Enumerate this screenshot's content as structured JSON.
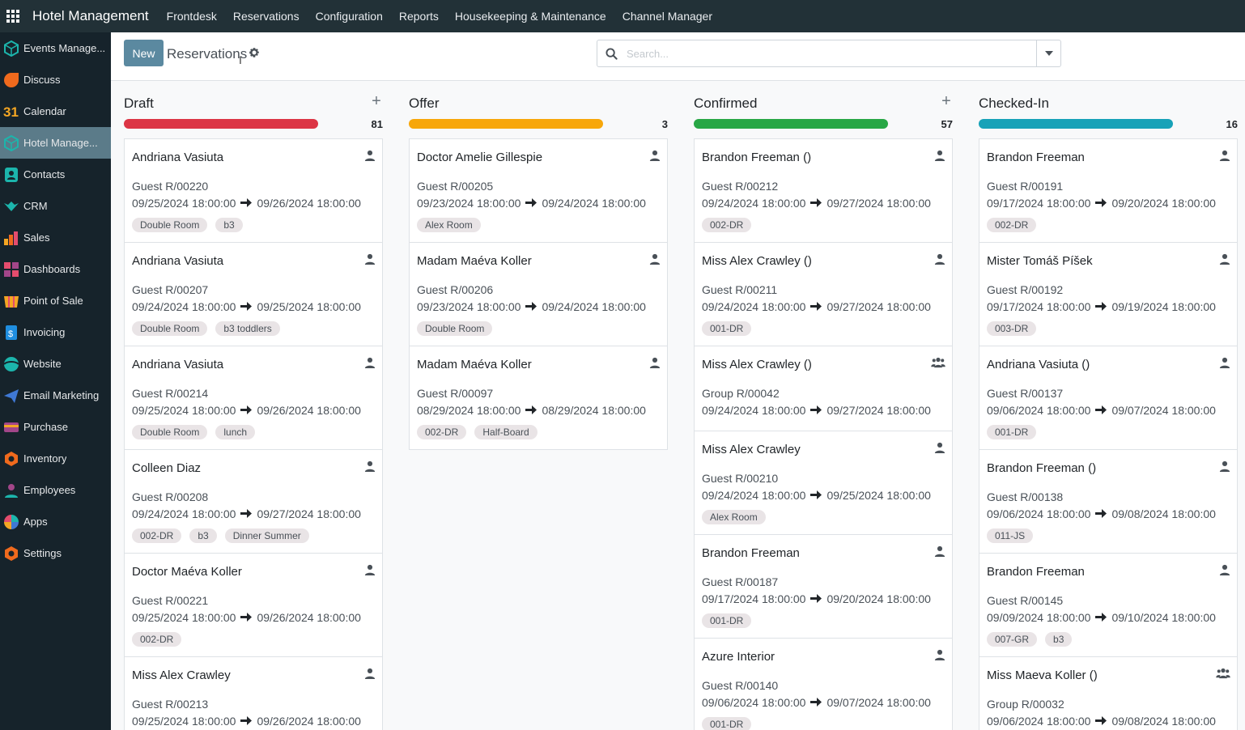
{
  "app": {
    "brand": "Hotel Management",
    "menu": [
      "Frontdesk",
      "Reservations",
      "Configuration",
      "Reports",
      "Housekeeping & Maintenance",
      "Channel Manager"
    ]
  },
  "sidebar": {
    "items": [
      {
        "label": "Events Manage...",
        "icon": "events-icon",
        "color": "#1cb5ac"
      },
      {
        "label": "Discuss",
        "icon": "discuss-icon",
        "color": "#f06a1d"
      },
      {
        "label": "Calendar",
        "icon": "calendar-icon",
        "color": "#f4a623"
      },
      {
        "label": "Hotel Manage...",
        "icon": "hotel-icon",
        "color": "#1cb5ac",
        "active": true
      },
      {
        "label": "Contacts",
        "icon": "contacts-icon",
        "color": "#1cb5ac"
      },
      {
        "label": "CRM",
        "icon": "crm-icon",
        "color": "#1cb5ac"
      },
      {
        "label": "Sales",
        "icon": "sales-icon",
        "color": "#f06a1d"
      },
      {
        "label": "Dashboards",
        "icon": "dashboards-icon",
        "color": "#e44c6d"
      },
      {
        "label": "Point of Sale",
        "icon": "pos-icon",
        "color": "#f4a623"
      },
      {
        "label": "Invoicing",
        "icon": "invoicing-icon",
        "color": "#1f8ee0"
      },
      {
        "label": "Website",
        "icon": "website-icon",
        "color": "#1cb5ac"
      },
      {
        "label": "Email Marketing",
        "icon": "email-marketing-icon",
        "color": "#3f78d4"
      },
      {
        "label": "Purchase",
        "icon": "purchase-icon",
        "color": "#a24689"
      },
      {
        "label": "Inventory",
        "icon": "inventory-icon",
        "color": "#f06a1d"
      },
      {
        "label": "Employees",
        "icon": "employees-icon",
        "color": "#a24689"
      },
      {
        "label": "Apps",
        "icon": "apps-icon",
        "color": "#e44c6d"
      },
      {
        "label": "Settings",
        "icon": "settings-icon",
        "color": "#f06a1d"
      }
    ]
  },
  "control": {
    "new_label": "New",
    "title": "Reservations",
    "search_placeholder": "Search..."
  },
  "columns": [
    {
      "title": "Draft",
      "count": "81",
      "color": "#dc3545",
      "addable": true,
      "cards": [
        {
          "name": "Andriana Vasiuta",
          "ref": "Guest R/00220",
          "from": "09/25/2024 18:00:00",
          "to": "09/26/2024 18:00:00",
          "tags": [
            "Double Room",
            "b3"
          ],
          "icon": "person"
        },
        {
          "name": "Andriana Vasiuta",
          "ref": "Guest R/00207",
          "from": "09/24/2024 18:00:00",
          "to": "09/25/2024 18:00:00",
          "tags": [
            "Double Room",
            "b3 toddlers"
          ],
          "icon": "person"
        },
        {
          "name": "Andriana Vasiuta",
          "ref": "Guest R/00214",
          "from": "09/25/2024 18:00:00",
          "to": "09/26/2024 18:00:00",
          "tags": [
            "Double Room",
            "lunch"
          ],
          "icon": "person"
        },
        {
          "name": "Colleen Diaz",
          "ref": "Guest R/00208",
          "from": "09/24/2024 18:00:00",
          "to": "09/27/2024 18:00:00",
          "tags": [
            "002-DR",
            "b3",
            "Dinner Summer"
          ],
          "icon": "person"
        },
        {
          "name": "Doctor Maéva Koller",
          "ref": "Guest R/00221",
          "from": "09/25/2024 18:00:00",
          "to": "09/26/2024 18:00:00",
          "tags": [
            "002-DR"
          ],
          "icon": "person"
        },
        {
          "name": "Miss Alex Crawley",
          "ref": "Guest R/00213",
          "from": "09/25/2024 18:00:00",
          "to": "09/26/2024 18:00:00",
          "tags": [],
          "icon": "person"
        }
      ]
    },
    {
      "title": "Offer",
      "count": "3",
      "color": "#f7a70a",
      "addable": false,
      "cards": [
        {
          "name": "Doctor Amelie Gillespie",
          "ref": "Guest R/00205",
          "from": "09/23/2024 18:00:00",
          "to": "09/24/2024 18:00:00",
          "tags": [
            "Alex Room"
          ],
          "icon": "person"
        },
        {
          "name": "Madam Maéva Koller",
          "ref": "Guest R/00206",
          "from": "09/23/2024 18:00:00",
          "to": "09/24/2024 18:00:00",
          "tags": [
            "Double Room"
          ],
          "icon": "person"
        },
        {
          "name": "Madam Maéva Koller",
          "ref": "Guest R/00097",
          "from": "08/29/2024 18:00:00",
          "to": "08/29/2024 18:00:00",
          "tags": [
            "002-DR",
            "Half-Board"
          ],
          "icon": "person"
        }
      ]
    },
    {
      "title": "Confirmed",
      "count": "57",
      "color": "#28a745",
      "addable": true,
      "cards": [
        {
          "name": "Brandon Freeman ()",
          "ref": "Guest R/00212",
          "from": "09/24/2024 18:00:00",
          "to": "09/27/2024 18:00:00",
          "tags": [
            "002-DR"
          ],
          "icon": "person"
        },
        {
          "name": "Miss Alex Crawley ()",
          "ref": "Guest R/00211",
          "from": "09/24/2024 18:00:00",
          "to": "09/27/2024 18:00:00",
          "tags": [
            "001-DR"
          ],
          "icon": "person"
        },
        {
          "name": "Miss Alex Crawley ()",
          "ref": "Group R/00042",
          "from": "09/24/2024 18:00:00",
          "to": "09/27/2024 18:00:00",
          "tags": [],
          "icon": "group"
        },
        {
          "name": "Miss Alex Crawley",
          "ref": "Guest R/00210",
          "from": "09/24/2024 18:00:00",
          "to": "09/25/2024 18:00:00",
          "tags": [
            "Alex Room"
          ],
          "icon": "person"
        },
        {
          "name": "Brandon Freeman",
          "ref": "Guest R/00187",
          "from": "09/17/2024 18:00:00",
          "to": "09/20/2024 18:00:00",
          "tags": [
            "001-DR"
          ],
          "icon": "person"
        },
        {
          "name": "Azure Interior",
          "ref": "Guest R/00140",
          "from": "09/06/2024 18:00:00",
          "to": "09/07/2024 18:00:00",
          "tags": [
            "001-DR"
          ],
          "icon": "person"
        }
      ]
    },
    {
      "title": "Checked-In",
      "count": "16",
      "color": "#17a2b8",
      "addable": false,
      "cards": [
        {
          "name": "Brandon Freeman",
          "ref": "Guest R/00191",
          "from": "09/17/2024 18:00:00",
          "to": "09/20/2024 18:00:00",
          "tags": [
            "002-DR"
          ],
          "icon": "person"
        },
        {
          "name": "Mister Tomáš Píšek",
          "ref": "Guest R/00192",
          "from": "09/17/2024 18:00:00",
          "to": "09/19/2024 18:00:00",
          "tags": [
            "003-DR"
          ],
          "icon": "person"
        },
        {
          "name": "Andriana Vasiuta ()",
          "ref": "Guest R/00137",
          "from": "09/06/2024 18:00:00",
          "to": "09/07/2024 18:00:00",
          "tags": [
            "001-DR"
          ],
          "icon": "person"
        },
        {
          "name": "Brandon Freeman ()",
          "ref": "Guest R/00138",
          "from": "09/06/2024 18:00:00",
          "to": "09/08/2024 18:00:00",
          "tags": [
            "011-JS"
          ],
          "icon": "person"
        },
        {
          "name": "Brandon Freeman",
          "ref": "Guest R/00145",
          "from": "09/09/2024 18:00:00",
          "to": "09/10/2024 18:00:00",
          "tags": [
            "007-GR",
            "b3"
          ],
          "icon": "person"
        },
        {
          "name": "Miss Maeva Koller ()",
          "ref": "Group R/00032",
          "from": "09/06/2024 18:00:00",
          "to": "09/08/2024 18:00:00",
          "tags": [],
          "icon": "group"
        }
      ]
    }
  ]
}
